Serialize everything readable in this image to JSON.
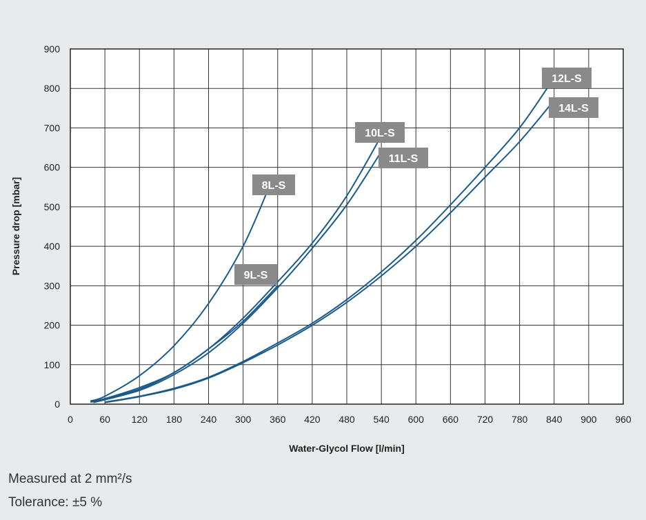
{
  "chart_data": {
    "type": "line",
    "title": "",
    "xlabel": "Water-Glycol Flow [l/min]",
    "ylabel": "Pressure drop [mbar]",
    "xlim": [
      0,
      960
    ],
    "ylim": [
      0,
      900
    ],
    "xticks": [
      0,
      60,
      120,
      180,
      240,
      300,
      360,
      420,
      480,
      540,
      600,
      660,
      720,
      780,
      840,
      900,
      960
    ],
    "yticks": [
      0,
      100,
      200,
      300,
      400,
      500,
      600,
      700,
      800,
      900
    ],
    "grid": true,
    "line_color": "#1a5a8a",
    "label_color": "#8a8a8a",
    "series": [
      {
        "name": "8L-S",
        "points": [
          [
            35,
            8
          ],
          [
            60,
            20
          ],
          [
            120,
            72
          ],
          [
            180,
            148
          ],
          [
            240,
            255
          ],
          [
            300,
            400
          ],
          [
            345,
            550
          ]
        ]
      },
      {
        "name": "9L-S",
        "points": [
          [
            35,
            5
          ],
          [
            60,
            14
          ],
          [
            120,
            42
          ],
          [
            180,
            80
          ],
          [
            240,
            140
          ],
          [
            300,
            210
          ],
          [
            360,
            300
          ]
        ]
      },
      {
        "name": "10L-S",
        "points": [
          [
            40,
            5
          ],
          [
            120,
            38
          ],
          [
            180,
            80
          ],
          [
            240,
            140
          ],
          [
            300,
            218
          ],
          [
            360,
            310
          ],
          [
            420,
            408
          ],
          [
            480,
            528
          ],
          [
            540,
            680
          ]
        ]
      },
      {
        "name": "11L-S",
        "points": [
          [
            40,
            4
          ],
          [
            120,
            35
          ],
          [
            180,
            75
          ],
          [
            240,
            130
          ],
          [
            300,
            205
          ],
          [
            360,
            295
          ],
          [
            420,
            395
          ],
          [
            480,
            505
          ],
          [
            540,
            640
          ]
        ]
      },
      {
        "name": "12L-S",
        "points": [
          [
            60,
            5
          ],
          [
            120,
            20
          ],
          [
            180,
            40
          ],
          [
            240,
            68
          ],
          [
            300,
            108
          ],
          [
            360,
            155
          ],
          [
            420,
            205
          ],
          [
            480,
            265
          ],
          [
            540,
            335
          ],
          [
            600,
            415
          ],
          [
            660,
            505
          ],
          [
            720,
            600
          ],
          [
            780,
            700
          ],
          [
            830,
            805
          ]
        ]
      },
      {
        "name": "14L-S",
        "points": [
          [
            60,
            4
          ],
          [
            120,
            19
          ],
          [
            180,
            38
          ],
          [
            240,
            66
          ],
          [
            300,
            105
          ],
          [
            360,
            150
          ],
          [
            420,
            200
          ],
          [
            480,
            258
          ],
          [
            540,
            325
          ],
          [
            600,
            400
          ],
          [
            660,
            485
          ],
          [
            720,
            575
          ],
          [
            780,
            665
          ],
          [
            840,
            770
          ]
        ]
      }
    ],
    "labels": [
      {
        "text": "8L-S",
        "series": "8L-S"
      },
      {
        "text": "9L-S",
        "series": "9L-S"
      },
      {
        "text": "10L-S",
        "series": "10L-S"
      },
      {
        "text": "11L-S",
        "series": "11L-S"
      },
      {
        "text": "12L-S",
        "series": "12L-S"
      },
      {
        "text": "14L-S",
        "series": "14L-S"
      }
    ]
  },
  "notes": {
    "measured": "Measured at 2 mm²/s",
    "tolerance": "Tolerance: ±5 %"
  }
}
